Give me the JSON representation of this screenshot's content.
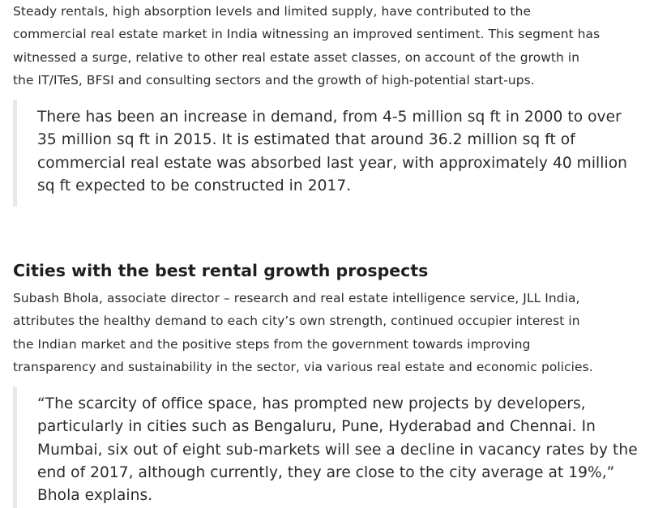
{
  "intro": {
    "lines": [
      "Steady rentals, high absorption levels and limited supply, have contributed to the",
      "commercial real estate market in India witnessing an improved sentiment. This segment has",
      "witnessed a surge, relative to other real estate asset classes, on account of the growth in",
      "the IT/ITeS, BFSI and consulting sectors and the growth of high-potential start-ups."
    ]
  },
  "quote1": {
    "lines": [
      "There has been an increase in demand, from 4-5 million sq ft in 2000 to over",
      "35 million sq ft in 2015. It is estimated that around 36.2 million sq ft of",
      "commercial real estate was absorbed last year, with approximately 40 million",
      "sq ft expected to be constructed in 2017."
    ]
  },
  "section": {
    "heading": "Cities with the best rental growth prospects",
    "lines": [
      "Subash Bhola, associate director – research and real estate intelligence service, JLL India,",
      "attributes the healthy demand to each city’s own strength, continued occupier interest in",
      "the Indian market and the positive steps from the government towards improving",
      "transparency and sustainability in the sector, via various real estate and economic policies."
    ]
  },
  "quote2": {
    "lines": [
      "“The scarcity of office space, has prompted new projects by developers,",
      "particularly in cities such as Bengaluru, Pune, Hyderabad and Chennai. In",
      "Mumbai, six out of eight sub-markets will see a decline in vacancy rates by the",
      "end of 2017, although currently, they are close to the city average at 19%,”",
      "Bhola explains."
    ]
  }
}
